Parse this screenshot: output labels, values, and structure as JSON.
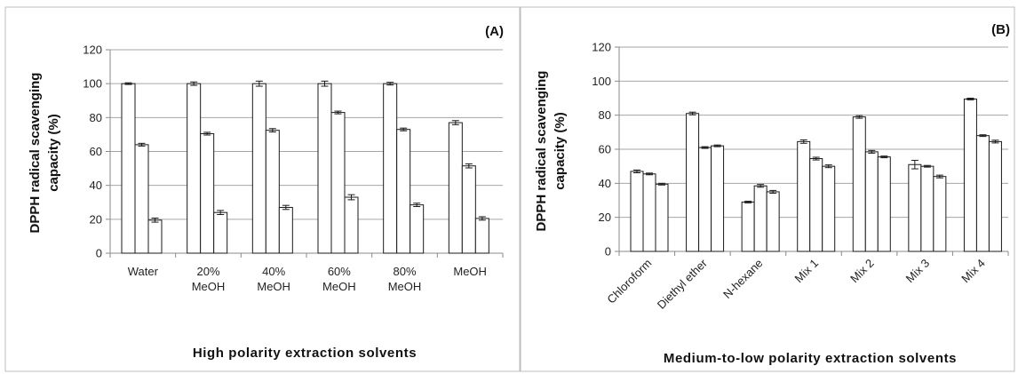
{
  "chart_data": [
    {
      "type": "bar",
      "panel_label": "(A)",
      "xlabel": "High polarity extraction solvents",
      "ylabel_lines": [
        "DPPH radical scavenging",
        "capacity (%)"
      ],
      "ylim": [
        0,
        120
      ],
      "yticks": [
        0,
        20,
        40,
        60,
        80,
        100,
        120
      ],
      "grid": true,
      "categories": [
        [
          "Water"
        ],
        [
          "20%",
          "MeOH"
        ],
        [
          "40%",
          "MeOH"
        ],
        [
          "60%",
          "MeOH"
        ],
        [
          "80%",
          "MeOH"
        ],
        [
          "MeOH"
        ]
      ],
      "series": [
        {
          "values": [
            100,
            100,
            100,
            100,
            100,
            77
          ],
          "errors": [
            0.5,
            1,
            1.5,
            1.5,
            0.8,
            1.2
          ]
        },
        {
          "values": [
            64,
            70.5,
            72.5,
            83,
            73,
            51.5
          ],
          "errors": [
            0.8,
            0.8,
            1,
            0.8,
            0.8,
            1.2
          ]
        },
        {
          "values": [
            19.5,
            24,
            27,
            33,
            28.5,
            20.5
          ],
          "errors": [
            1.2,
            1.2,
            1.2,
            1.5,
            1,
            1
          ]
        }
      ]
    },
    {
      "type": "bar",
      "panel_label": "(B)",
      "xlabel": "Medium-to-low polarity extraction solvents",
      "ylabel_lines": [
        "DPPH radical scavenging",
        "capacity (%)"
      ],
      "ylim": [
        0,
        120
      ],
      "yticks": [
        0,
        20,
        40,
        60,
        80,
        100,
        120
      ],
      "grid": true,
      "categories": [
        "Chloroform",
        "Diethyl ether",
        "N-hexane",
        "Mix 1",
        "Mix 2",
        "Mix 3",
        "Mix 4"
      ],
      "series": [
        {
          "values": [
            47,
            81,
            29,
            64.5,
            79,
            51,
            89.5
          ],
          "errors": [
            0.8,
            0.8,
            0.5,
            1,
            0.8,
            2.5,
            0.5
          ]
        },
        {
          "values": [
            45.5,
            61,
            38.5,
            54.5,
            58.5,
            50,
            68
          ],
          "errors": [
            0.5,
            0.5,
            0.8,
            0.8,
            0.8,
            0.5,
            0.5
          ]
        },
        {
          "values": [
            39.5,
            62,
            35,
            50,
            55.5,
            44,
            64.5
          ],
          "errors": [
            0.5,
            0.5,
            0.8,
            0.8,
            0.5,
            0.8,
            0.8
          ]
        }
      ]
    }
  ]
}
